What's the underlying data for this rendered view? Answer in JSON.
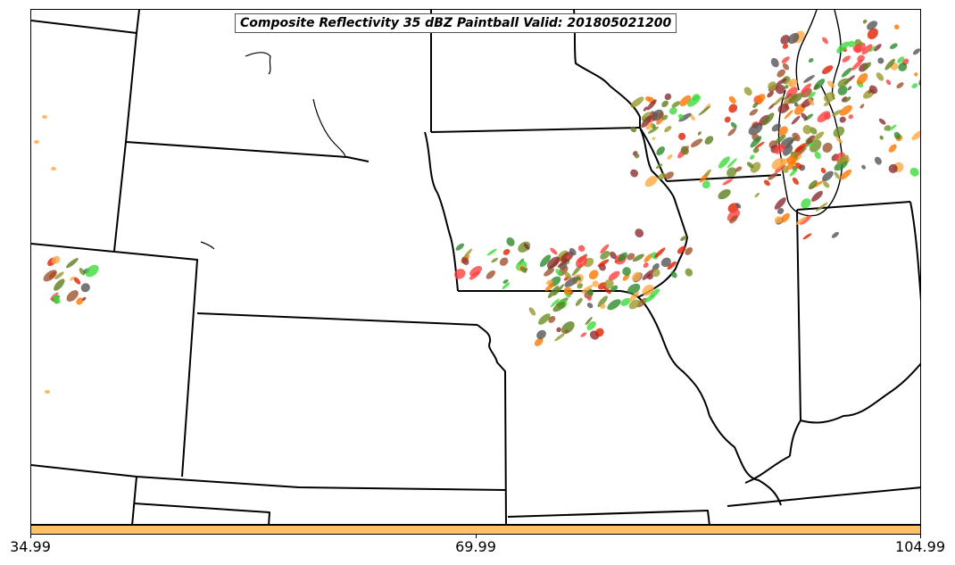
{
  "title": "Composite Reflectivity 35 dBZ Paintball Valid: 201805021200",
  "colorbar": {
    "color": "#FFC266",
    "ticks": [
      "34.99",
      "69.99",
      "104.99"
    ]
  },
  "storm_colors": [
    "#555555",
    "#8B2E2E",
    "#9A9A2E",
    "#5E7E1E",
    "#3DDB3D",
    "#2E8B2E",
    "#FF4040",
    "#E02000",
    "#FF7700",
    "#FFAA44",
    "#6B8E23",
    "#A0522D"
  ]
}
